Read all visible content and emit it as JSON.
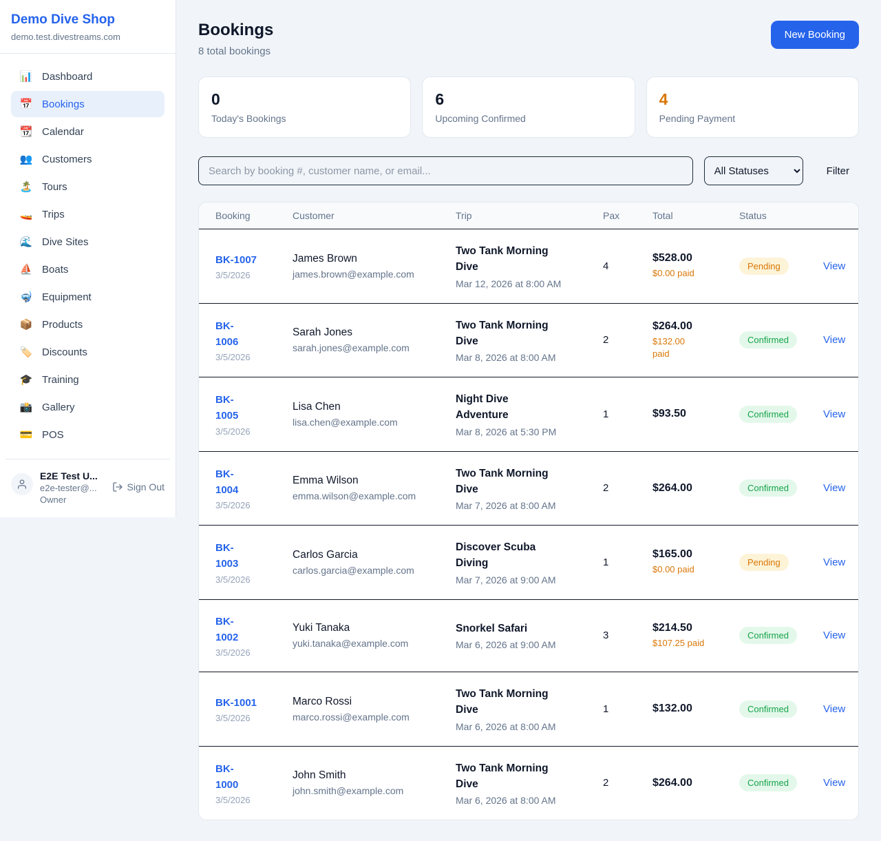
{
  "sidebar": {
    "shop_name": "Demo Dive Shop",
    "shop_domain": "demo.test.divestreams.com",
    "items": [
      {
        "label": "Dashboard",
        "icon": "📊",
        "key": "dashboard",
        "active": false
      },
      {
        "label": "Bookings",
        "icon": "📅",
        "key": "bookings",
        "active": true
      },
      {
        "label": "Calendar",
        "icon": "📆",
        "key": "calendar",
        "active": false
      },
      {
        "label": "Customers",
        "icon": "👥",
        "key": "customers",
        "active": false
      },
      {
        "label": "Tours",
        "icon": "🏝️",
        "key": "tours",
        "active": false
      },
      {
        "label": "Trips",
        "icon": "🚤",
        "key": "trips",
        "active": false
      },
      {
        "label": "Dive Sites",
        "icon": "🌊",
        "key": "dive-sites",
        "active": false
      },
      {
        "label": "Boats",
        "icon": "⛵",
        "key": "boats",
        "active": false
      },
      {
        "label": "Equipment",
        "icon": "🤿",
        "key": "equipment",
        "active": false
      },
      {
        "label": "Products",
        "icon": "📦",
        "key": "products",
        "active": false
      },
      {
        "label": "Discounts",
        "icon": "🏷️",
        "key": "discounts",
        "active": false
      },
      {
        "label": "Training",
        "icon": "🎓",
        "key": "training",
        "active": false
      },
      {
        "label": "Gallery",
        "icon": "📸",
        "key": "gallery",
        "active": false
      },
      {
        "label": "POS",
        "icon": "💳",
        "key": "pos",
        "active": false
      }
    ],
    "user": {
      "name": "E2E Test U...",
      "email": "e2e-tester@...",
      "role": "Owner",
      "sign_out_label": "Sign Out"
    }
  },
  "header": {
    "title": "Bookings",
    "subtitle": "8 total bookings",
    "new_booking_label": "New Booking"
  },
  "stats": [
    {
      "value": "0",
      "label": "Today's Bookings",
      "accent": false
    },
    {
      "value": "6",
      "label": "Upcoming Confirmed",
      "accent": false
    },
    {
      "value": "4",
      "label": "Pending Payment",
      "accent": true
    }
  ],
  "filters": {
    "search_placeholder": "Search by booking #, customer name, or email...",
    "status_selected": "All Statuses",
    "filter_label": "Filter"
  },
  "table": {
    "columns": [
      "Booking",
      "Customer",
      "Trip",
      "Pax",
      "Total",
      "Status"
    ],
    "rows": [
      {
        "id": "BK-1007",
        "id_two_line": false,
        "date": "3/5/2026",
        "customer": "James Brown",
        "email": "james.brown@example.com",
        "trip": "Two Tank Morning Dive",
        "trip_datetime": "Mar 12, 2026 at 8:00 AM",
        "pax": "4",
        "total": "$528.00",
        "paid": "$0.00 paid",
        "paid_two_line": false,
        "status": "Pending",
        "action": "View"
      },
      {
        "id": "BK-1006",
        "id_two_line": true,
        "date": "3/5/2026",
        "customer": "Sarah Jones",
        "email": "sarah.jones@example.com",
        "trip": "Two Tank Morning Dive",
        "trip_datetime": "Mar 8, 2026 at 8:00 AM",
        "pax": "2",
        "total": "$264.00",
        "paid": "$132.00 paid",
        "paid_two_line": true,
        "status": "Confirmed",
        "action": "View"
      },
      {
        "id": "BK-1005",
        "id_two_line": true,
        "date": "3/5/2026",
        "customer": "Lisa Chen",
        "email": "lisa.chen@example.com",
        "trip": "Night Dive Adventure",
        "trip_datetime": "Mar 8, 2026 at 5:30 PM",
        "pax": "1",
        "total": "$93.50",
        "paid": "",
        "paid_two_line": false,
        "status": "Confirmed",
        "action": "View"
      },
      {
        "id": "BK-1004",
        "id_two_line": true,
        "date": "3/5/2026",
        "customer": "Emma Wilson",
        "email": "emma.wilson@example.com",
        "trip": "Two Tank Morning Dive",
        "trip_datetime": "Mar 7, 2026 at 8:00 AM",
        "pax": "2",
        "total": "$264.00",
        "paid": "",
        "paid_two_line": false,
        "status": "Confirmed",
        "action": "View"
      },
      {
        "id": "BK-1003",
        "id_two_line": true,
        "date": "3/5/2026",
        "customer": "Carlos Garcia",
        "email": "carlos.garcia@example.com",
        "trip": "Discover Scuba Diving",
        "trip_datetime": "Mar 7, 2026 at 9:00 AM",
        "pax": "1",
        "total": "$165.00",
        "paid": "$0.00 paid",
        "paid_two_line": false,
        "status": "Pending",
        "action": "View"
      },
      {
        "id": "BK-1002",
        "id_two_line": true,
        "date": "3/5/2026",
        "customer": "Yuki Tanaka",
        "email": "yuki.tanaka@example.com",
        "trip": "Snorkel Safari",
        "trip_datetime": "Mar 6, 2026 at 9:00 AM",
        "pax": "3",
        "total": "$214.50",
        "paid": "$107.25 paid",
        "paid_two_line": false,
        "status": "Confirmed",
        "action": "View"
      },
      {
        "id": "BK-1001",
        "id_two_line": false,
        "date": "3/5/2026",
        "customer": "Marco Rossi",
        "email": "marco.rossi@example.com",
        "trip": "Two Tank Morning Dive",
        "trip_datetime": "Mar 6, 2026 at 8:00 AM",
        "pax": "1",
        "total": "$132.00",
        "paid": "",
        "paid_two_line": false,
        "status": "Confirmed",
        "action": "View"
      },
      {
        "id": "BK-1000",
        "id_two_line": true,
        "date": "3/5/2026",
        "customer": "John Smith",
        "email": "john.smith@example.com",
        "trip": "Two Tank Morning Dive",
        "trip_datetime": "Mar 6, 2026 at 8:00 AM",
        "pax": "2",
        "total": "$264.00",
        "paid": "",
        "paid_two_line": false,
        "status": "Confirmed",
        "action": "View"
      }
    ]
  },
  "colors": {
    "accent_blue": "#2563eb",
    "pending_text": "#d97706",
    "pending_bg": "#fdf3d7",
    "confirmed_text": "#16a34a",
    "confirmed_bg": "#e3f8ea",
    "paid_orange": "#d97706",
    "dark_text": "#0f172a",
    "muted_text": "#64748b",
    "page_bg": "#f1f5f9",
    "card_border": "#e2e8f0",
    "row_border": "#111827"
  }
}
